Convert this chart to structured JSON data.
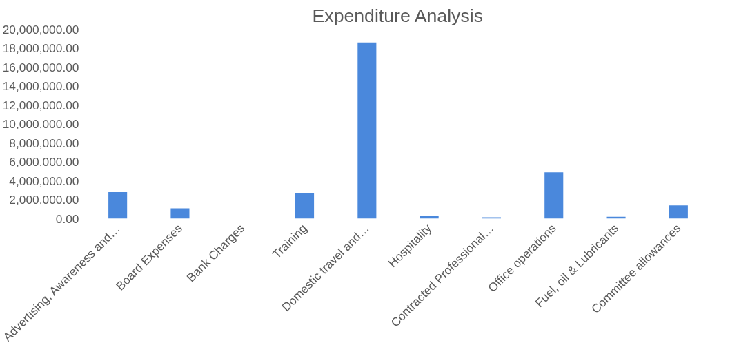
{
  "chart_data": {
    "type": "bar",
    "title": "Expenditure Analysis",
    "categories": [
      "Advertising, Awareness and…",
      "Board Expenses",
      "Bank Charges",
      "Training",
      "Domestic travel and…",
      "Hospitality",
      "Contracted Professional…",
      "Office operations",
      "Fuel, oil & Lubricants",
      "Committee allowances"
    ],
    "values": [
      2800000,
      1100000,
      0,
      2700000,
      18600000,
      250000,
      150000,
      4900000,
      200000,
      1400000
    ],
    "color": "#4a88dc",
    "ylim": [
      0,
      20000000
    ],
    "yticks": [
      {
        "value": 0,
        "label": "0.00"
      },
      {
        "value": 2000000,
        "label": "2,000,000.00"
      },
      {
        "value": 4000000,
        "label": "4,000,000.00"
      },
      {
        "value": 6000000,
        "label": "6,000,000.00"
      },
      {
        "value": 8000000,
        "label": "8,000,000.00"
      },
      {
        "value": 10000000,
        "label": "10,000,000.00"
      },
      {
        "value": 12000000,
        "label": "12,000,000.00"
      },
      {
        "value": 14000000,
        "label": "14,000,000.00"
      },
      {
        "value": 16000000,
        "label": "16,000,000.00"
      },
      {
        "value": 18000000,
        "label": "18,000,000.00"
      },
      {
        "value": 20000000,
        "label": "20,000,000.00"
      }
    ],
    "grid": false
  }
}
